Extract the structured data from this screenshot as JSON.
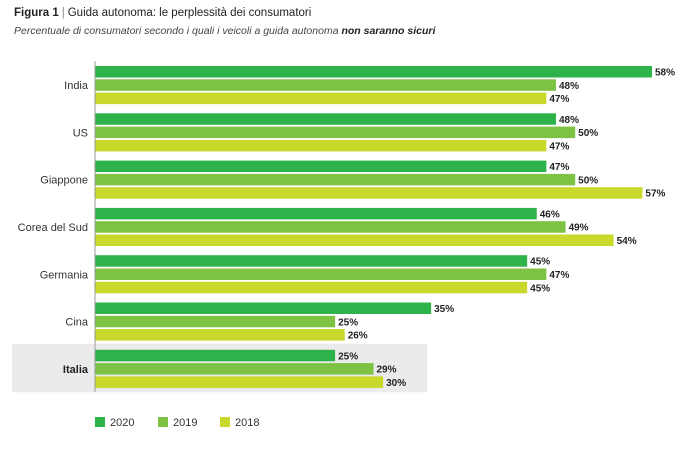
{
  "header": {
    "figure_label": "Figura 1",
    "separator": "|",
    "title": "Guida autonoma: le perplessità dei consumatori",
    "subtitle_prefix": "Percentuale di consumatori secondo i quali i veicoli a guida autonoma",
    "subtitle_emphasis": "non saranno sicuri"
  },
  "colors": {
    "s2020": "#2db34a",
    "s2019": "#7dc242",
    "s2018": "#c8d92c",
    "highlight_bg": "#ebebeb",
    "axis": "#999999"
  },
  "chart_data": {
    "type": "bar",
    "orientation": "horizontal",
    "title": "Guida autonoma: le perplessità dei consumatori",
    "subtitle": "Percentuale di consumatori secondo i quali i veicoli a guida autonoma non saranno sicuri",
    "categories": [
      "India",
      "US",
      "Giappone",
      "Corea del Sud",
      "Germania",
      "Cina",
      "Italia"
    ],
    "highlighted_category": "Italia",
    "series": [
      {
        "name": "2020",
        "values": [
          58,
          48,
          47,
          46,
          45,
          35,
          25
        ]
      },
      {
        "name": "2019",
        "values": [
          48,
          50,
          50,
          49,
          47,
          25,
          29
        ]
      },
      {
        "name": "2018",
        "values": [
          47,
          47,
          57,
          54,
          45,
          26,
          30
        ]
      }
    ],
    "value_suffix": "%",
    "xlim": [
      0,
      58
    ],
    "grid": false,
    "legend": "bottom-left"
  }
}
